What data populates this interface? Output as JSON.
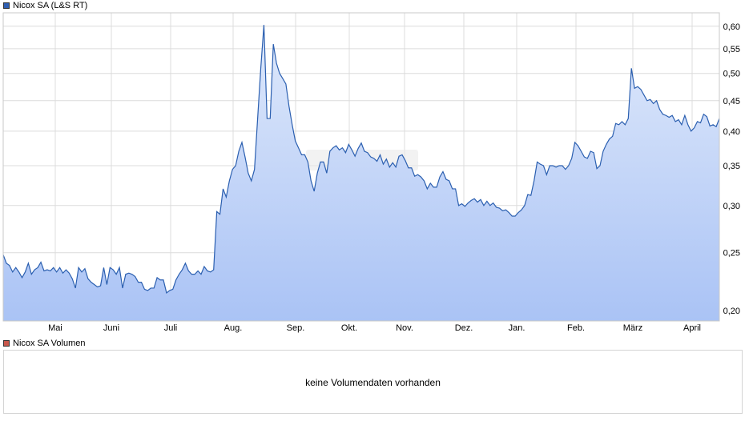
{
  "colors": {
    "line": "#2b5fb0",
    "area_top": "#dfe9fb",
    "area_bottom": "#aac3f5",
    "grid": "#dcdcdc",
    "price_swatch": "#2f5fb3",
    "volume_swatch": "#c9574b",
    "watermark": "#e6e6e6"
  },
  "legend": {
    "price_label": "Nicox SA (L&S RT)",
    "volume_label": "Nicox SA Volumen"
  },
  "volume": {
    "empty_message": "keine Volumendaten vorhanden"
  },
  "chart_data": {
    "type": "area",
    "x_labels": [
      "Mai",
      "Juni",
      "Juli",
      "Aug.",
      "Sep.",
      "Okt.",
      "Nov.",
      "Dez.",
      "Jan.",
      "Feb.",
      "März",
      "April"
    ],
    "y_ticks": [
      "0,20",
      "0,25",
      "0,30",
      "0,35",
      "0,40",
      "0,45",
      "0,50",
      "0,55",
      "0,60"
    ],
    "y_tick_values": [
      0.2,
      0.25,
      0.3,
      0.35,
      0.4,
      0.45,
      0.5,
      0.55,
      0.6
    ],
    "y_scale": "log",
    "ylim": [
      0.192,
      0.632
    ],
    "grid": true,
    "series": [
      {
        "name": "Nicox SA (L&S RT)",
        "values": [
          0.248,
          0.24,
          0.238,
          0.232,
          0.236,
          0.232,
          0.227,
          0.232,
          0.24,
          0.23,
          0.234,
          0.236,
          0.241,
          0.233,
          0.234,
          0.233,
          0.236,
          0.232,
          0.236,
          0.231,
          0.234,
          0.231,
          0.226,
          0.218,
          0.236,
          0.232,
          0.235,
          0.226,
          0.223,
          0.221,
          0.219,
          0.22,
          0.236,
          0.221,
          0.236,
          0.234,
          0.23,
          0.236,
          0.218,
          0.23,
          0.231,
          0.23,
          0.228,
          0.223,
          0.223,
          0.217,
          0.216,
          0.218,
          0.218,
          0.227,
          0.225,
          0.225,
          0.214,
          0.216,
          0.217,
          0.225,
          0.23,
          0.234,
          0.24,
          0.233,
          0.23,
          0.23,
          0.233,
          0.23,
          0.237,
          0.233,
          0.232,
          0.234,
          0.293,
          0.29,
          0.32,
          0.31,
          0.33,
          0.345,
          0.35,
          0.37,
          0.383,
          0.362,
          0.34,
          0.33,
          0.345,
          0.42,
          0.51,
          0.603,
          0.42,
          0.42,
          0.56,
          0.52,
          0.5,
          0.49,
          0.48,
          0.44,
          0.41,
          0.385,
          0.375,
          0.365,
          0.365,
          0.355,
          0.33,
          0.317,
          0.34,
          0.355,
          0.355,
          0.34,
          0.37,
          0.375,
          0.378,
          0.372,
          0.375,
          0.368,
          0.38,
          0.372,
          0.363,
          0.374,
          0.382,
          0.37,
          0.368,
          0.362,
          0.36,
          0.356,
          0.365,
          0.352,
          0.359,
          0.348,
          0.354,
          0.348,
          0.363,
          0.365,
          0.357,
          0.347,
          0.347,
          0.336,
          0.338,
          0.335,
          0.33,
          0.32,
          0.327,
          0.322,
          0.322,
          0.335,
          0.342,
          0.332,
          0.33,
          0.32,
          0.32,
          0.3,
          0.302,
          0.299,
          0.303,
          0.306,
          0.308,
          0.304,
          0.307,
          0.3,
          0.305,
          0.3,
          0.303,
          0.298,
          0.297,
          0.294,
          0.295,
          0.292,
          0.288,
          0.288,
          0.292,
          0.295,
          0.3,
          0.313,
          0.312,
          0.33,
          0.355,
          0.352,
          0.35,
          0.338,
          0.35,
          0.35,
          0.348,
          0.35,
          0.35,
          0.345,
          0.35,
          0.36,
          0.383,
          0.378,
          0.37,
          0.362,
          0.36,
          0.37,
          0.368,
          0.346,
          0.35,
          0.37,
          0.38,
          0.388,
          0.392,
          0.412,
          0.41,
          0.415,
          0.41,
          0.42,
          0.51,
          0.472,
          0.475,
          0.47,
          0.46,
          0.45,
          0.452,
          0.445,
          0.45,
          0.435,
          0.427,
          0.425,
          0.422,
          0.425,
          0.415,
          0.418,
          0.41,
          0.425,
          0.41,
          0.4,
          0.405,
          0.415,
          0.413,
          0.427,
          0.423,
          0.408,
          0.41,
          0.407,
          0.42
        ]
      }
    ]
  }
}
